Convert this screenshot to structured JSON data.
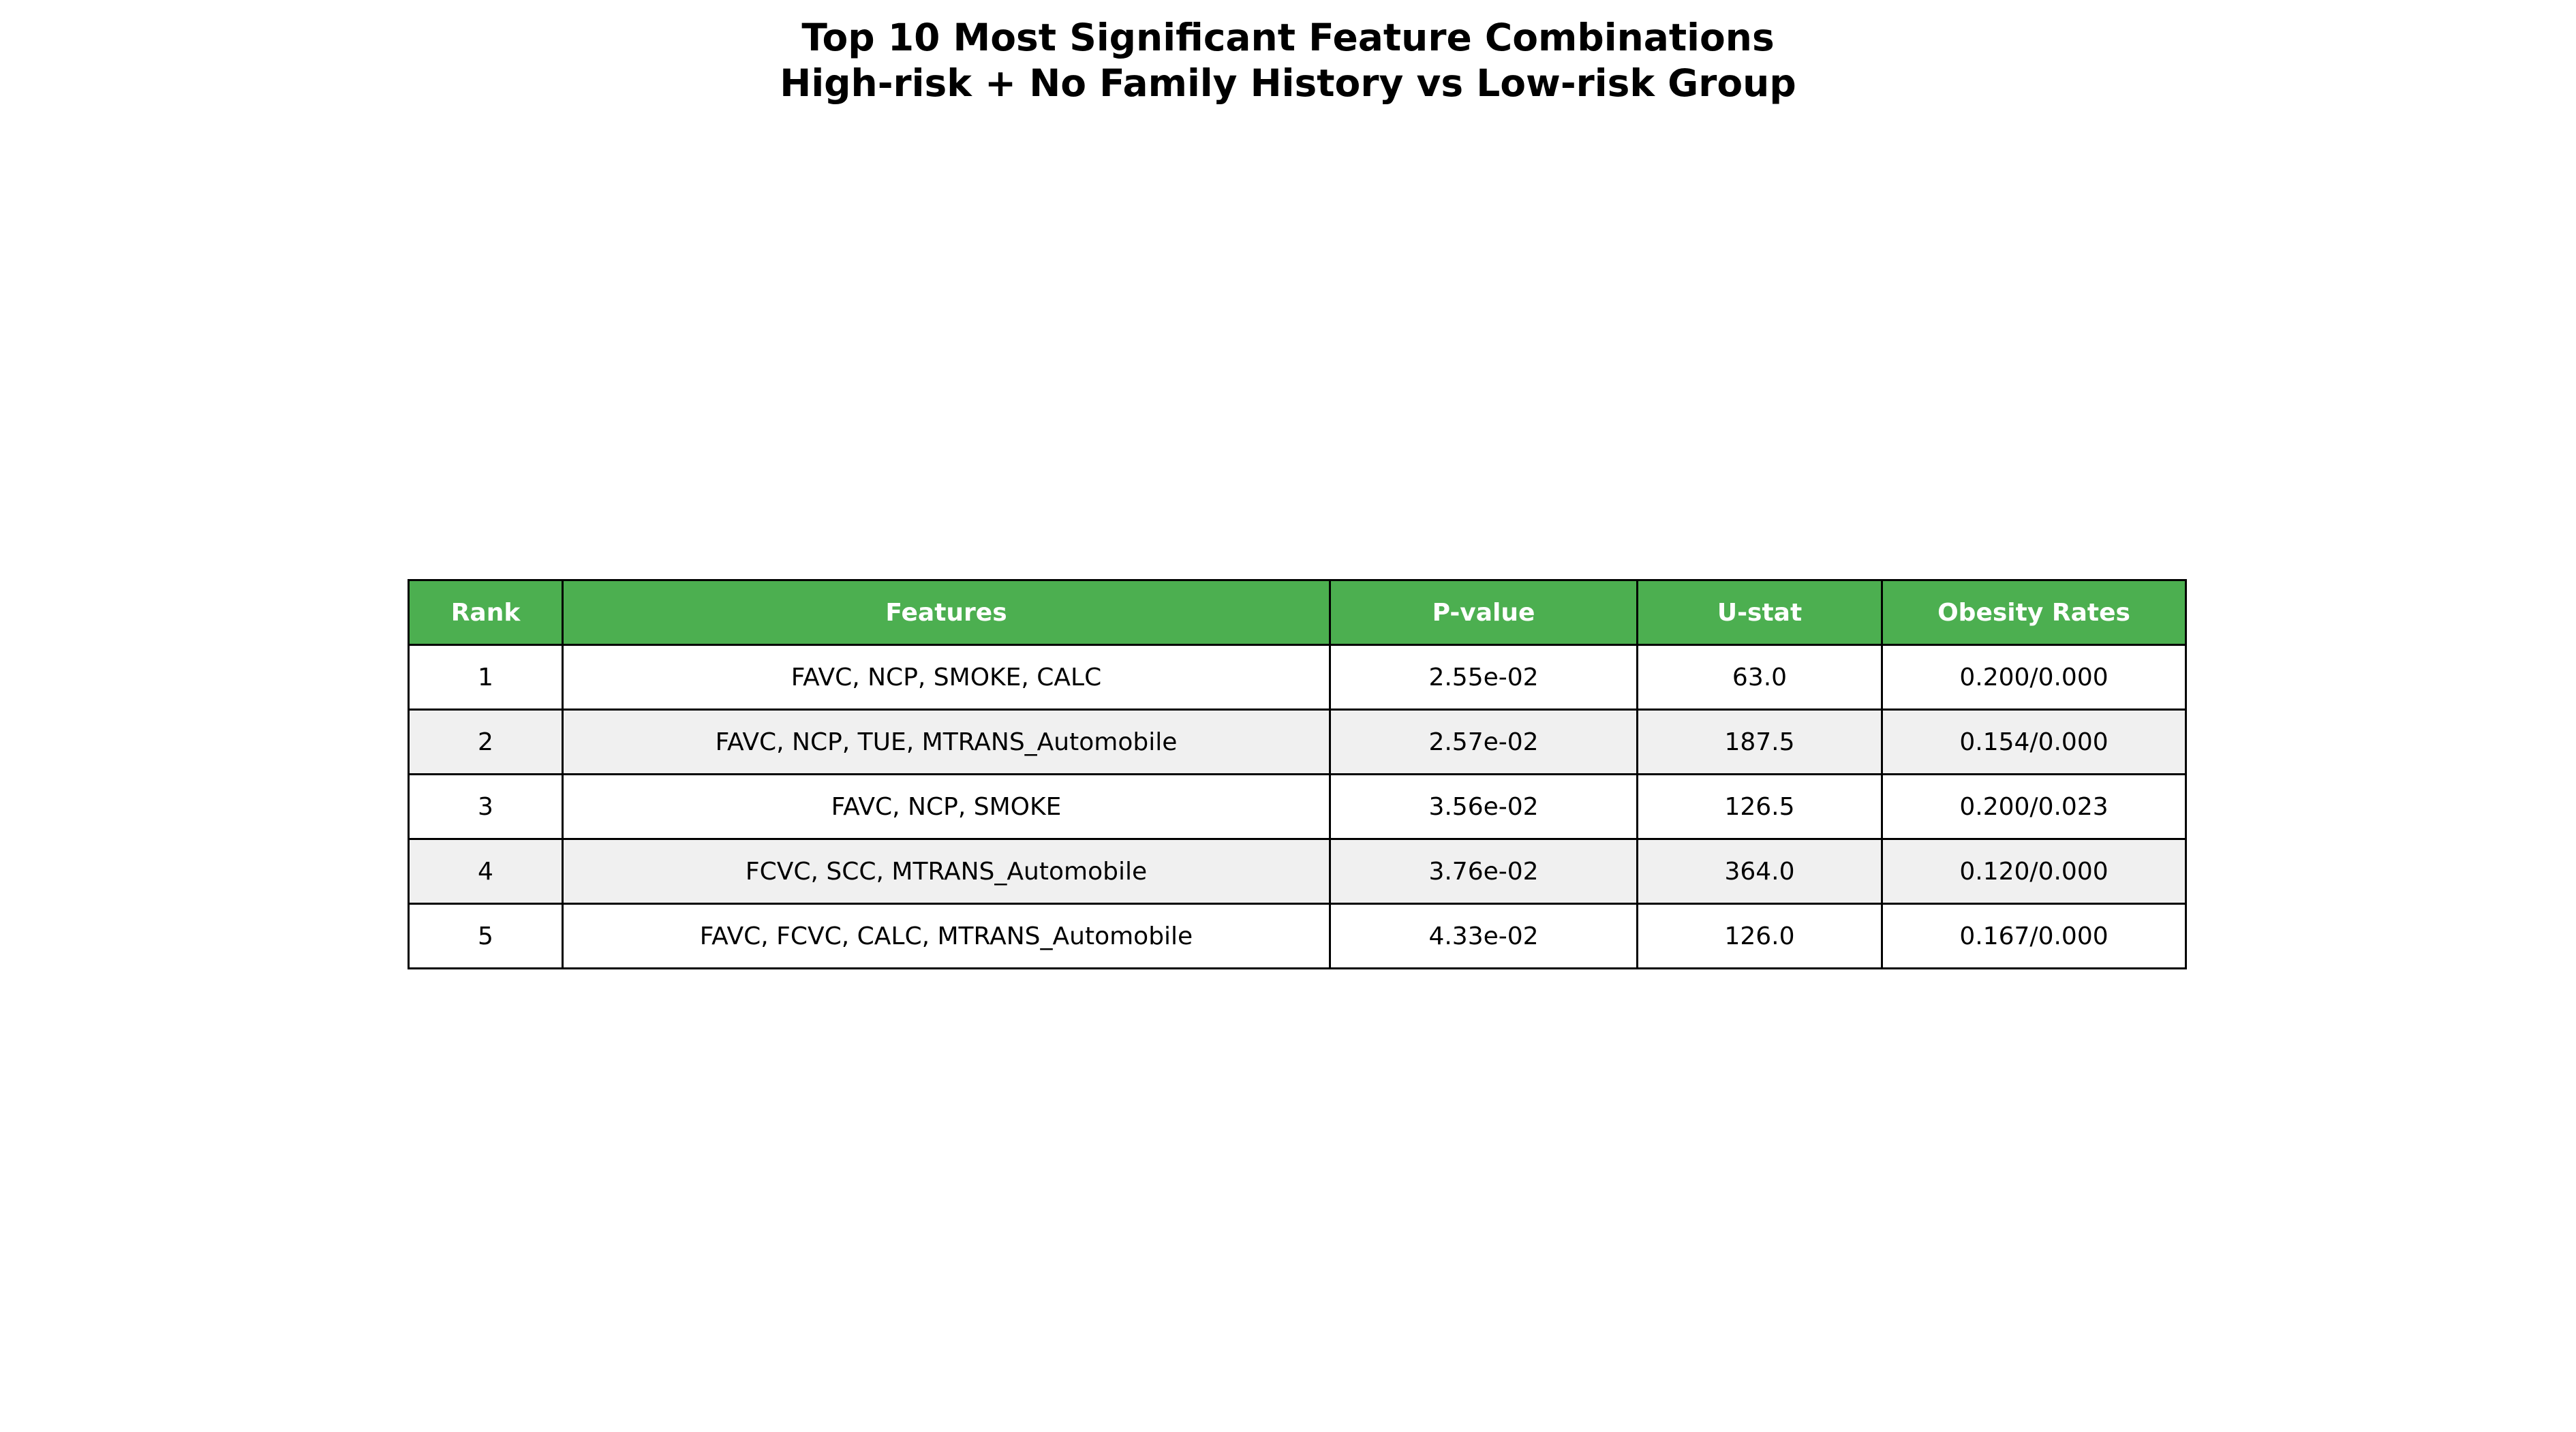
{
  "chart_data": {
    "type": "table",
    "title": "Top 10 Most Significant Feature Combinations\nHigh-risk + No Family History vs Low-risk Group",
    "title_lines": [
      "Top 10 Most Significant Feature Combinations",
      "High-risk + No Family History vs Low-risk Group"
    ],
    "columns": [
      "Rank",
      "Features",
      "P-value",
      "U-stat",
      "Obesity Rates"
    ],
    "rows": [
      [
        "1",
        "FAVC, NCP, SMOKE, CALC",
        "2.55e-02",
        "63.0",
        "0.200/0.000"
      ],
      [
        "2",
        "FAVC, NCP, TUE, MTRANS_Automobile",
        "2.57e-02",
        "187.5",
        "0.154/0.000"
      ],
      [
        "3",
        "FAVC, NCP, SMOKE",
        "3.56e-02",
        "126.5",
        "0.200/0.023"
      ],
      [
        "4",
        "FCVC, SCC, MTRANS_Automobile",
        "3.76e-02",
        "364.0",
        "0.120/0.000"
      ],
      [
        "5",
        "FAVC, FCVC, CALC, MTRANS_Automobile",
        "4.33e-02",
        "126.0",
        "0.167/0.000"
      ]
    ]
  },
  "colors": {
    "header_background": "#4caf50",
    "header_text": "#ffffff",
    "row_odd_background": "#ffffff",
    "row_even_background": "#f0f0f0",
    "border": "#000000"
  }
}
